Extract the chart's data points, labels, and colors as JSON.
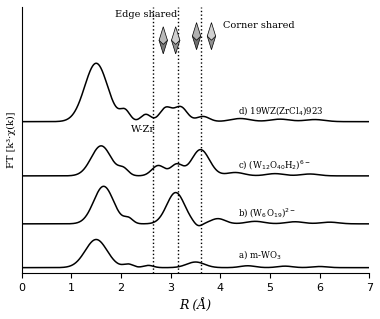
{
  "xlabel": "R (Å)",
  "ylabel": "FT [k³·χ(k)]",
  "xlim": [
    0,
    7
  ],
  "dashed_lines": [
    2.65,
    3.15,
    3.6
  ],
  "label_texts": [
    "a) m-WO$_3$",
    "b) (W$_6$O$_{19}$)$^{2-}$",
    "c) (W$_{12}$O$_{40}$H$_2$)$^{6-}$",
    "d) 19WZ(ZrCl$_4$)923"
  ],
  "annotation_wzr": "W-Zr",
  "annotation_edge": "Edge shared",
  "annotation_corner": "Corner shared",
  "offsets": [
    0.0,
    0.42,
    0.88,
    1.4
  ],
  "scales": [
    0.18,
    0.2,
    0.18,
    0.2
  ],
  "line_color": "#000000",
  "background": "#ffffff"
}
